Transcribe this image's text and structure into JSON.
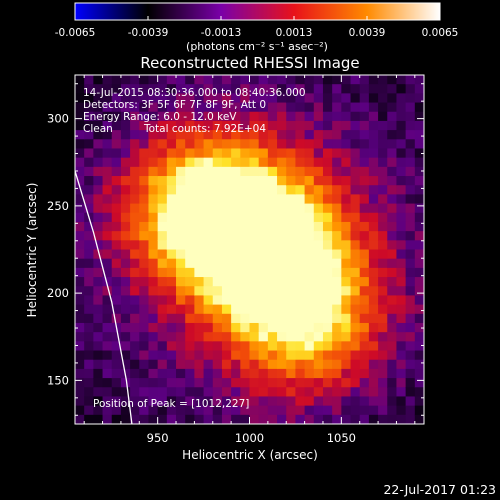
{
  "colorbar": {
    "ticks": [
      "-0.0065",
      "-0.0039",
      "-0.0013",
      "0.0013",
      "0.0039",
      "0.0065"
    ],
    "unit_label": "(photons cm⁻² s⁻¹ asec⁻²)",
    "range": [
      -0.0065,
      0.0065
    ],
    "colors": [
      "#0000ff",
      "#000000",
      "#7a00a8",
      "#e8121a",
      "#ff8a00",
      "#ffffff"
    ]
  },
  "chart_data": {
    "type": "heatmap",
    "title": "Reconstructed RHESSI Image",
    "xlabel": "Heliocentric X (arcsec)",
    "ylabel": "Heliocentric Y (arcsec)",
    "xlim": [
      905,
      1095
    ],
    "ylim": [
      125,
      325
    ],
    "x_ticks": [
      950,
      1000,
      1050
    ],
    "y_ticks": [
      150,
      200,
      250,
      300
    ],
    "annotations": [
      "14-Jul-2015 08:30:36.000 to 08:40:36.000",
      "Detectors: 3F 5F 6F 7F 8F 9F, Att 0",
      "Energy Range: 6.0 - 12.0 keV",
      "Clean",
      "Total counts: 7.92E+04"
    ],
    "peak_label": "Position of Peak = [1012,227]",
    "peak": [
      1012,
      227
    ],
    "sources": [
      {
        "x": 975,
        "y": 248,
        "amp": 0.95
      },
      {
        "x": 1010,
        "y": 228,
        "amp": 1.0
      },
      {
        "x": 1030,
        "y": 185,
        "amp": 0.75
      }
    ],
    "limb": [
      [
        905,
        270
      ],
      [
        915,
        235
      ],
      [
        925,
        195
      ],
      [
        933,
        150
      ],
      [
        936,
        125
      ]
    ]
  },
  "footer": {
    "timestamp": "22-Jul-2017 01:23"
  }
}
